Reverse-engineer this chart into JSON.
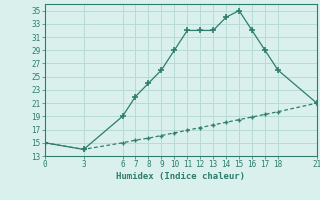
{
  "line1_x": [
    0,
    3,
    6,
    7,
    8,
    9,
    10,
    11,
    12,
    13,
    14,
    15,
    16,
    17,
    18,
    21
  ],
  "line1_y": [
    15,
    14,
    19,
    22,
    24,
    26,
    29,
    32,
    32,
    32,
    34,
    35,
    32,
    29,
    26,
    21
  ],
  "line2_x": [
    0,
    3,
    6,
    7,
    8,
    9,
    10,
    11,
    12,
    13,
    14,
    15,
    16,
    17,
    18,
    21
  ],
  "line2_y": [
    15,
    14,
    15,
    15.4,
    15.7,
    16.1,
    16.5,
    16.9,
    17.3,
    17.7,
    18.1,
    18.5,
    18.9,
    19.3,
    19.7,
    21
  ],
  "line_color": "#2e7d6e",
  "bg_color": "#d9f0ed",
  "grid_color": "#b8dbd6",
  "xlabel": "Humidex (Indice chaleur)",
  "xticks": [
    0,
    3,
    6,
    7,
    8,
    9,
    10,
    11,
    12,
    13,
    14,
    15,
    16,
    17,
    18,
    21
  ],
  "yticks": [
    13,
    15,
    17,
    19,
    21,
    23,
    25,
    27,
    29,
    31,
    33,
    35
  ],
  "xlim": [
    0,
    21
  ],
  "ylim": [
    13,
    36
  ],
  "marker": "+"
}
